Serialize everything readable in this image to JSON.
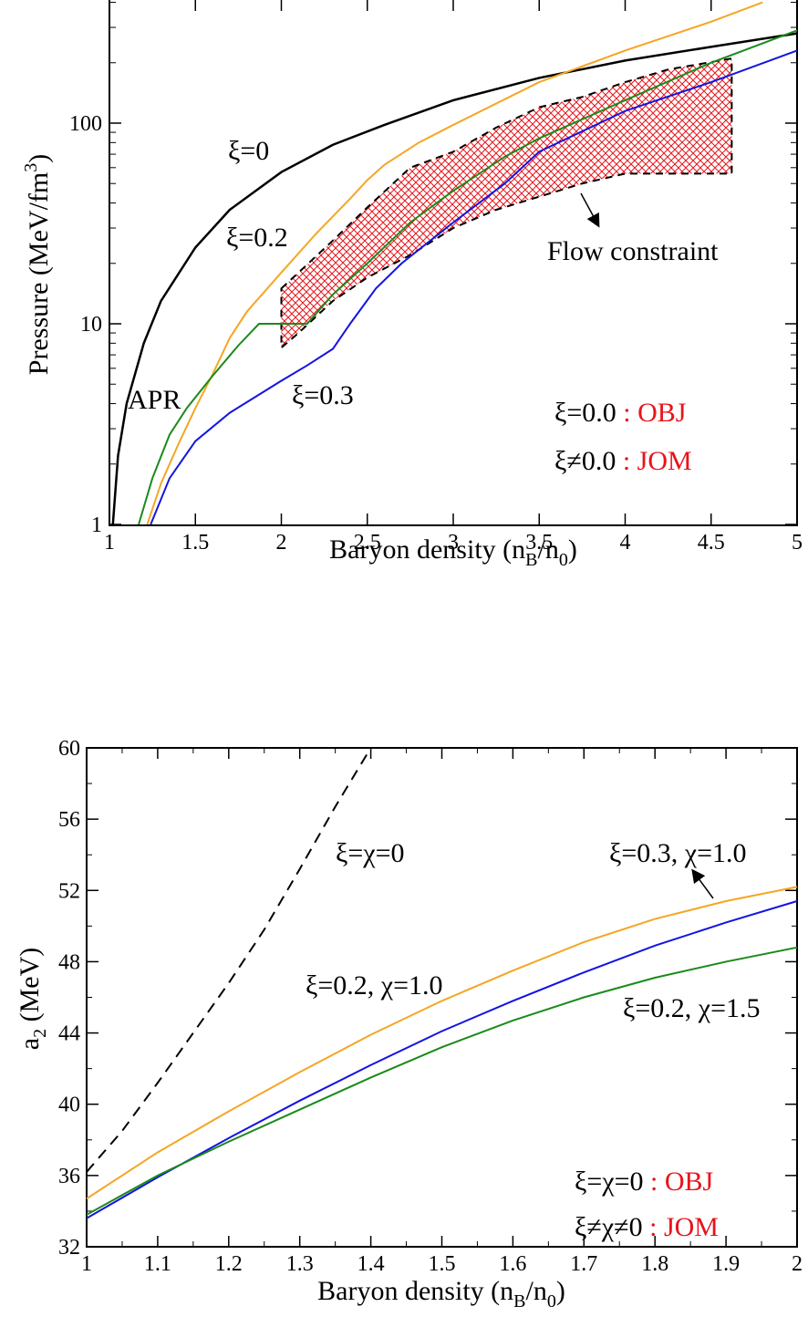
{
  "colors": {
    "black": "#000000",
    "orange": "#f5a623",
    "green": "#1a8a1a",
    "blue": "#1414e0",
    "red_label": "#e8141a",
    "hatch": "#e8141a"
  },
  "chart_data": [
    {
      "type": "line",
      "yscale": "log",
      "xlim": [
        1,
        5
      ],
      "ylim": [
        1,
        400
      ],
      "xlabel": "Baryon density (n_B/n_0)",
      "xlabel_parts": {
        "main": "Baryon density (n",
        "sub1": "B",
        "mid": "/n",
        "sub2": "0",
        "end": ")"
      },
      "ylabel": "Pressure (MeV/fm^3)",
      "ylabel_parts": {
        "main": "Pressure (MeV/fm",
        "sup": "3",
        "end": ")"
      },
      "x_ticks": [
        "1",
        "1.5",
        "2",
        "2.5",
        "3",
        "3.5",
        "4",
        "4.5",
        "5"
      ],
      "y_ticks": [
        "1",
        "10",
        "100"
      ],
      "series": [
        {
          "name": "ξ=0",
          "color": "black",
          "x": [
            1.02,
            1.05,
            1.1,
            1.2,
            1.3,
            1.5,
            1.7,
            2.0,
            2.3,
            2.6,
            3.0,
            3.5,
            4.0,
            4.5,
            5.0
          ],
          "y": [
            1.0,
            2.2,
            4.0,
            8.0,
            13,
            24,
            37,
            57,
            78,
            98,
            130,
            168,
            205,
            240,
            280
          ]
        },
        {
          "name": "ξ=0.2",
          "color": "orange",
          "x": [
            1.22,
            1.3,
            1.4,
            1.5,
            1.6,
            1.7,
            1.8,
            2.0,
            2.2,
            2.4,
            2.5,
            2.6,
            2.8,
            3.0,
            3.5,
            4.0,
            4.5,
            4.8
          ],
          "y": [
            1.0,
            1.6,
            2.5,
            3.8,
            5.6,
            8.5,
            11.5,
            18,
            28,
            42,
            52,
            62,
            80,
            98,
            160,
            230,
            320,
            400
          ]
        },
        {
          "name": "APR",
          "color": "green",
          "x": [
            1.17,
            1.25,
            1.35,
            1.45,
            1.6,
            1.75,
            1.87,
            2.0,
            2.15,
            2.3,
            2.5,
            2.75,
            3.0,
            3.3,
            3.5,
            4.0,
            4.5,
            5.0
          ],
          "y": [
            1.0,
            1.7,
            2.8,
            3.8,
            5.5,
            7.8,
            10.0,
            10.0,
            10.0,
            14,
            20,
            32,
            46,
            68,
            84,
            130,
            200,
            290
          ]
        },
        {
          "name": "ξ=0.3",
          "color": "blue",
          "x": [
            1.24,
            1.35,
            1.5,
            1.7,
            2.0,
            2.15,
            2.3,
            2.4,
            2.55,
            2.7,
            3.0,
            3.3,
            3.5,
            4.0,
            4.5,
            5.0
          ],
          "y": [
            1.0,
            1.7,
            2.6,
            3.6,
            5.2,
            6.2,
            7.5,
            10.0,
            15,
            20,
            32,
            50,
            72,
            115,
            160,
            230
          ]
        }
      ],
      "band": {
        "name": "Flow constraint",
        "upper": {
          "x": [
            2.0,
            2.1,
            2.3,
            2.5,
            2.75,
            3.0,
            3.25,
            3.5,
            3.75,
            4.0,
            4.25,
            4.62
          ],
          "y": [
            15,
            18,
            26,
            38,
            60,
            72,
            95,
            120,
            135,
            160,
            185,
            210
          ]
        },
        "lower": {
          "x": [
            2.0,
            2.1,
            2.3,
            2.5,
            2.75,
            3.0,
            3.25,
            3.5,
            3.75,
            4.0,
            4.25,
            4.62
          ],
          "y": [
            7.6,
            9.0,
            13,
            17,
            22,
            30,
            37,
            43,
            50,
            56,
            56,
            56
          ]
        }
      },
      "annotations": {
        "xi0": "ξ=0",
        "xi02": "ξ=0.2",
        "xi03": "ξ=0.3",
        "apr": "APR",
        "flow": "Flow constraint",
        "legend1_left": "ξ=0.0",
        "legend1_right": " : OBJ",
        "legend2_left": "ξ≠0.0",
        "legend2_right": " : JOM"
      }
    },
    {
      "type": "line",
      "xlim": [
        1,
        2
      ],
      "ylim": [
        32,
        60
      ],
      "xlabel": "Baryon density (n_B/n_0)",
      "xlabel_parts": {
        "main": "Baryon density (n",
        "sub1": "B",
        "mid": "/n",
        "sub2": "0",
        "end": ")"
      },
      "ylabel": "a_2 (MeV)",
      "ylabel_parts": {
        "main": "a",
        "sub": "2",
        "end": " (MeV)"
      },
      "x_ticks": [
        "1",
        "1.1",
        "1.2",
        "1.3",
        "1.4",
        "1.5",
        "1.6",
        "1.7",
        "1.8",
        "1.9",
        "2"
      ],
      "y_ticks": [
        "32",
        "36",
        "40",
        "44",
        "48",
        "52",
        "56",
        "60"
      ],
      "series": [
        {
          "name": "ξ=χ=0",
          "color": "black",
          "dashed": true,
          "x": [
            1.0,
            1.05,
            1.1,
            1.15,
            1.2,
            1.25,
            1.3,
            1.35,
            1.4
          ],
          "y": [
            36.2,
            38.5,
            41.2,
            44.0,
            46.8,
            49.8,
            53.2,
            56.7,
            60.0
          ]
        },
        {
          "name": "ξ=0.2, χ=1.0",
          "color": "orange",
          "x": [
            1.0,
            1.1,
            1.2,
            1.3,
            1.4,
            1.5,
            1.6,
            1.7,
            1.8,
            1.9,
            2.0
          ],
          "y": [
            34.7,
            37.3,
            39.6,
            41.8,
            43.9,
            45.8,
            47.5,
            49.1,
            50.4,
            51.4,
            52.2
          ]
        },
        {
          "name": "ξ=0.3, χ=1.0",
          "color": "blue",
          "x": [
            1.0,
            1.1,
            1.2,
            1.3,
            1.4,
            1.5,
            1.6,
            1.7,
            1.8,
            1.9,
            2.0
          ],
          "y": [
            33.6,
            35.9,
            38.1,
            40.2,
            42.2,
            44.1,
            45.8,
            47.4,
            48.9,
            50.2,
            51.4
          ]
        },
        {
          "name": "ξ=0.2, χ=1.5",
          "color": "green",
          "x": [
            1.0,
            1.1,
            1.2,
            1.3,
            1.4,
            1.5,
            1.6,
            1.7,
            1.8,
            1.9,
            2.0
          ],
          "y": [
            33.8,
            36.0,
            37.9,
            39.7,
            41.5,
            43.2,
            44.7,
            46.0,
            47.1,
            48.0,
            48.8
          ]
        }
      ],
      "annotations": {
        "xichi0": "ξ=χ=0",
        "s1": "ξ=0.2, χ=1.0",
        "s2": "ξ=0.3, χ=1.0",
        "s3": "ξ=0.2, χ=1.5",
        "legend1_left": "ξ=χ=0",
        "legend1_right": " : OBJ",
        "legend2_left": "ξ≠χ≠0",
        "legend2_right": " : JOM"
      }
    }
  ]
}
